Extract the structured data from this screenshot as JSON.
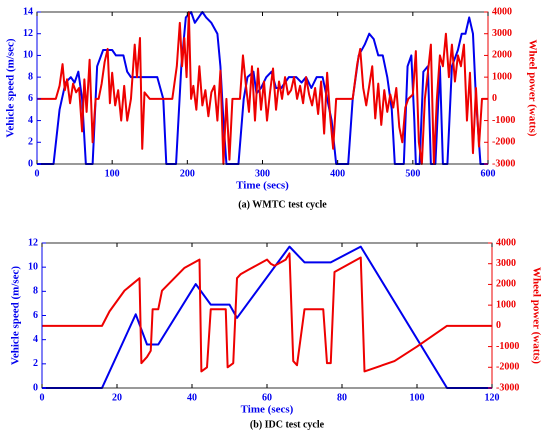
{
  "chart_data": [
    {
      "type": "line",
      "title": "(a) WMTC test cycle",
      "xlabel": "Time (secs)",
      "ylabel": "Vehicle speed (m/sec)",
      "y2label": "Wheel power (watts)",
      "xlim": [
        0,
        600
      ],
      "xticks": [
        0,
        100,
        200,
        300,
        400,
        500,
        600
      ],
      "ylim": [
        0,
        14
      ],
      "yticks": [
        0,
        2,
        4,
        6,
        8,
        10,
        12,
        14
      ],
      "ycolor": "#0000ee",
      "y2lim": [
        -3000,
        4000
      ],
      "y2ticks": [
        -3000,
        -2000,
        -1000,
        0,
        1000,
        2000,
        3000,
        4000
      ],
      "y2color": "#ee0000",
      "series": [
        {
          "color": "#0000ee",
          "axis": "y",
          "x": [
            0,
            22,
            30,
            38,
            45,
            50,
            55,
            60,
            65,
            74,
            80,
            88,
            100,
            105,
            115,
            120,
            125,
            140,
            160,
            168,
            172,
            185,
            192,
            198,
            205,
            210,
            215,
            220,
            225,
            232,
            240,
            244,
            248,
            252,
            268,
            275,
            280,
            288,
            292,
            298,
            305,
            312,
            318,
            325,
            335,
            345,
            352,
            358,
            365,
            372,
            380,
            386,
            392,
            398,
            414,
            420,
            428,
            436,
            442,
            448,
            454,
            460,
            466,
            472,
            476,
            488,
            493,
            498,
            502,
            504,
            509,
            514,
            520,
            524,
            530,
            536,
            540,
            546,
            552,
            560,
            565,
            570,
            575,
            580,
            584,
            590,
            600
          ],
          "values": [
            0,
            0,
            5,
            7.5,
            8,
            7.5,
            8.5,
            6,
            0,
            0,
            9,
            10.5,
            10.5,
            10,
            10,
            8.5,
            8,
            8,
            8,
            6,
            0,
            0,
            9,
            13.5,
            14,
            13,
            13.5,
            14,
            13.5,
            13,
            12,
            9,
            4,
            0,
            0,
            6,
            8,
            8.5,
            6.5,
            7,
            8,
            8.5,
            7,
            7,
            8,
            8,
            7.5,
            8,
            7,
            8,
            8,
            6,
            4,
            0,
            0,
            6,
            10,
            11,
            12,
            11.5,
            10,
            10,
            8,
            5,
            0,
            0,
            9,
            10,
            4,
            0,
            0,
            8.5,
            9,
            0,
            0,
            9,
            0,
            0,
            9,
            10.5,
            12,
            12,
            13.5,
            12,
            6,
            0,
            0
          ]
        },
        {
          "color": "#ee0000",
          "axis": "y2",
          "x": [
            0,
            25,
            30,
            34,
            37,
            40,
            44,
            48,
            52,
            56,
            60,
            63,
            66,
            70,
            74,
            78,
            82,
            86,
            90,
            94,
            97,
            100,
            104,
            108,
            112,
            116,
            120,
            125,
            130,
            133,
            137,
            140,
            143,
            150,
            180,
            186,
            190,
            193,
            196,
            199,
            202,
            205,
            208,
            212,
            216,
            220,
            224,
            228,
            232,
            236,
            240,
            244,
            248,
            252,
            256,
            260,
            270,
            274,
            278,
            282,
            286,
            290,
            294,
            298,
            302,
            306,
            310,
            314,
            318,
            322,
            326,
            330,
            334,
            338,
            342,
            346,
            350,
            354,
            358,
            362,
            366,
            370,
            374,
            378,
            382,
            386,
            390,
            394,
            398,
            420,
            426,
            430,
            434,
            438,
            442,
            446,
            450,
            454,
            458,
            462,
            466,
            470,
            474,
            478,
            482,
            486,
            490,
            494,
            500,
            504,
            508,
            512,
            516,
            520,
            524,
            528,
            532,
            536,
            540,
            544,
            548,
            552,
            556,
            560,
            564,
            568,
            572,
            576,
            580,
            584,
            588,
            592,
            600
          ],
          "values": [
            0,
            0,
            600,
            1600,
            400,
            900,
            -200,
            700,
            300,
            500,
            -1500,
            900,
            -600,
            1800,
            -2000,
            0,
            0,
            700,
            1700,
            2300,
            -200,
            1200,
            -300,
            400,
            -1000,
            600,
            -1000,
            0,
            2500,
            1000,
            2800,
            -2300,
            300,
            0,
            0,
            1500,
            3500,
            1500,
            2800,
            1000,
            4000,
            0,
            600,
            -500,
            1500,
            -300,
            400,
            -800,
            300,
            600,
            -1000,
            1300,
            -3000,
            0,
            -2800,
            0,
            0,
            2000,
            600,
            -600,
            1500,
            -1000,
            1400,
            -500,
            800,
            -1000,
            300,
            1400,
            -500,
            800,
            0,
            1000,
            200,
            400,
            1000,
            0,
            600,
            -200,
            1000,
            200,
            -300,
            500,
            -700,
            800,
            -1600,
            1200,
            -800,
            -2300,
            0,
            0,
            1600,
            2300,
            500,
            -300,
            600,
            1500,
            -900,
            700,
            -1200,
            400,
            -600,
            200,
            -400,
            500,
            -1300,
            -2000,
            -400,
            0,
            200,
            2200,
            -2000,
            -3000,
            0,
            1200,
            2500,
            -3000,
            0,
            2000,
            1500,
            3000,
            1000,
            2500,
            800,
            2000,
            1500,
            2500,
            -1000,
            1200,
            -2500,
            500,
            -2200,
            0,
            0
          ]
        }
      ]
    },
    {
      "type": "line",
      "title": "(b) IDC test cycle",
      "xlabel": "Time (secs)",
      "ylabel": "Vehicle speed (m/sec)",
      "y2label": "Wheel power (watts)",
      "xlim": [
        0,
        120
      ],
      "xticks": [
        0,
        20,
        40,
        60,
        80,
        100,
        120
      ],
      "ylim": [
        0,
        12
      ],
      "yticks": [
        0,
        2,
        4,
        6,
        8,
        10,
        12
      ],
      "ycolor": "#0000ee",
      "y2lim": [
        -3000,
        4000
      ],
      "y2ticks": [
        -3000,
        -2000,
        -1000,
        0,
        1000,
        2000,
        3000,
        4000
      ],
      "y2color": "#ee0000",
      "series": [
        {
          "color": "#0000ee",
          "axis": "y",
          "x": [
            0,
            16,
            25,
            28,
            31,
            41,
            45,
            50,
            52,
            66,
            70,
            77,
            85,
            108,
            120
          ],
          "values": [
            0,
            0,
            6.1,
            3.6,
            3.6,
            8.6,
            6.9,
            6.9,
            5.8,
            11.7,
            10.4,
            10.4,
            11.7,
            0,
            0
          ]
        },
        {
          "color": "#ee0000",
          "axis": "y2",
          "x": [
            0,
            16,
            18,
            22,
            24,
            26,
            26.5,
            28,
            29,
            29.5,
            31,
            32,
            38,
            42,
            42.5,
            44,
            45,
            49,
            49.5,
            51,
            52,
            53,
            55,
            60,
            61,
            62,
            63,
            65,
            66,
            67,
            68,
            70,
            75,
            76,
            77,
            78,
            85,
            86,
            94,
            100,
            108,
            120
          ],
          "values": [
            0,
            0,
            700,
            1700,
            2000,
            2300,
            -1800,
            -1500,
            -1200,
            800,
            800,
            1700,
            2800,
            3200,
            -2200,
            -2000,
            800,
            800,
            -2000,
            -1800,
            2300,
            2500,
            2700,
            3200,
            3000,
            2900,
            3000,
            3200,
            3500,
            -1700,
            -1900,
            800,
            800,
            -1800,
            -1800,
            2600,
            3300,
            -2200,
            -1700,
            -1000,
            0,
            0
          ]
        }
      ]
    }
  ]
}
